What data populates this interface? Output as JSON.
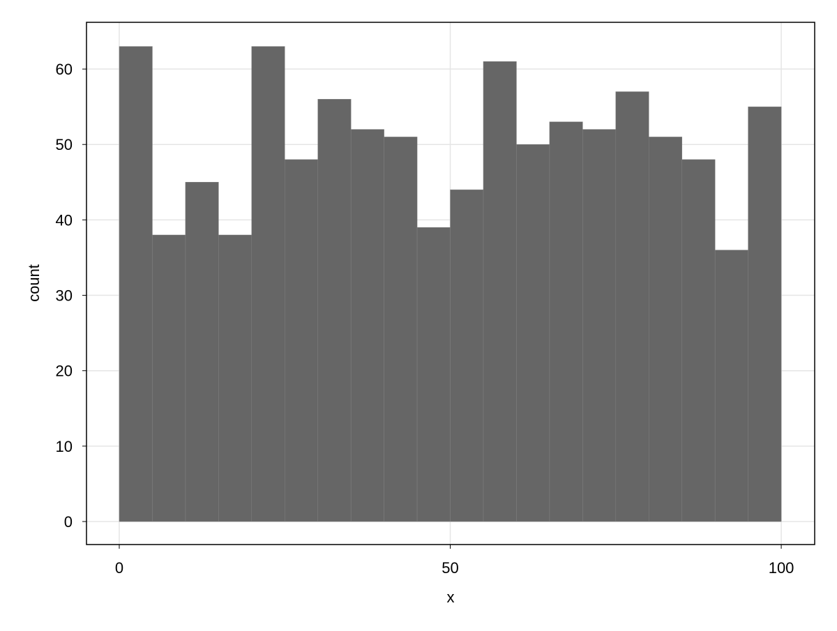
{
  "chart_data": {
    "type": "bar",
    "subtype": "histogram",
    "title": "",
    "xlabel": "x",
    "ylabel": "count",
    "bin_edges": [
      0,
      5,
      10,
      15,
      20,
      25,
      30,
      35,
      40,
      45,
      50,
      55,
      60,
      65,
      70,
      75,
      80,
      85,
      90,
      95,
      100
    ],
    "values": [
      63,
      38,
      45,
      38,
      63,
      48,
      56,
      52,
      51,
      39,
      44,
      61,
      50,
      53,
      52,
      57,
      51,
      48,
      36,
      55
    ],
    "xlim": [
      -4.95,
      105.05
    ],
    "ylim": [
      -3.05,
      66.2
    ],
    "xticks": [
      0,
      50,
      100
    ],
    "xtick_labels": [
      "0",
      "50",
      "100"
    ],
    "yticks": [
      0,
      10,
      20,
      30,
      40,
      50,
      60
    ],
    "ytick_labels": [
      "0",
      "10",
      "20",
      "30",
      "40",
      "50",
      "60"
    ],
    "grid": true,
    "bar_color": "#666666",
    "bar_edge_color": "#808080",
    "grid_color": "#e5e5e5"
  }
}
